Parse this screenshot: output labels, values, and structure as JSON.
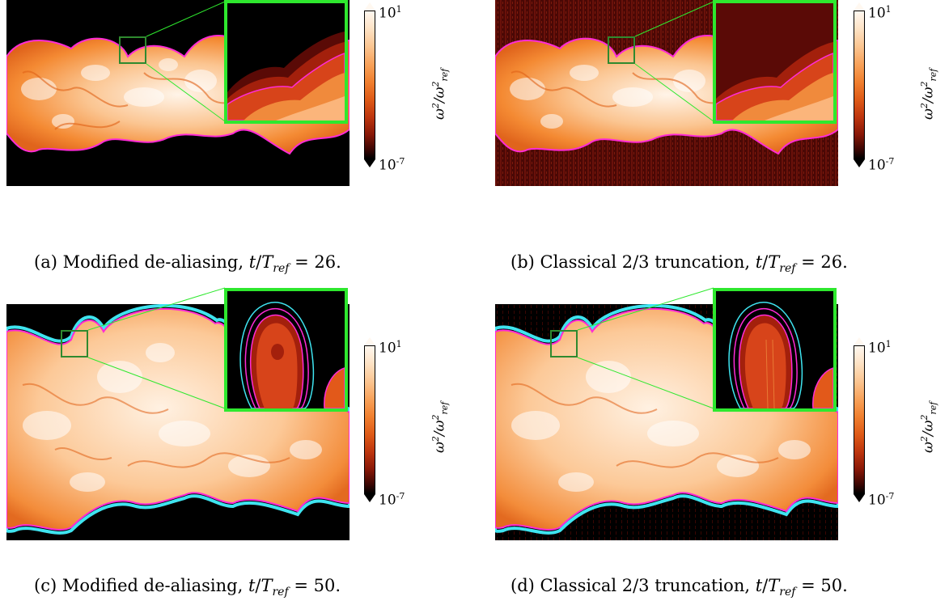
{
  "figure": {
    "colorbar": {
      "label": "ω²/ω²ref",
      "max_label": "10",
      "max_exp": "1",
      "min_label": "10",
      "min_exp": "-7"
    },
    "panels": [
      {
        "id": "a",
        "caption_prefix": "(a) Modified de-aliasing, ",
        "caption_value": " = 26.",
        "background_noise": false
      },
      {
        "id": "b",
        "caption_prefix": "(b) Classical 2/3 truncation, ",
        "caption_value": " = 26.",
        "background_noise": true
      },
      {
        "id": "c",
        "caption_prefix": "(c) Modified de-aliasing, ",
        "caption_value": " = 50.",
        "background_noise": false
      },
      {
        "id": "d",
        "caption_prefix": "(d) Classical 2/3 truncation, ",
        "caption_value": " = 50.",
        "background_noise": true
      }
    ],
    "time_symbol": "t/T",
    "time_sub": "ref",
    "colors": {
      "highlight_box": "#2ee82e",
      "zoom_box": "#2f8a2f",
      "contour_magenta": "#ff2bd6",
      "contour_cyan": "#3fe4f0",
      "noise_red": "#5a0a06"
    }
  }
}
